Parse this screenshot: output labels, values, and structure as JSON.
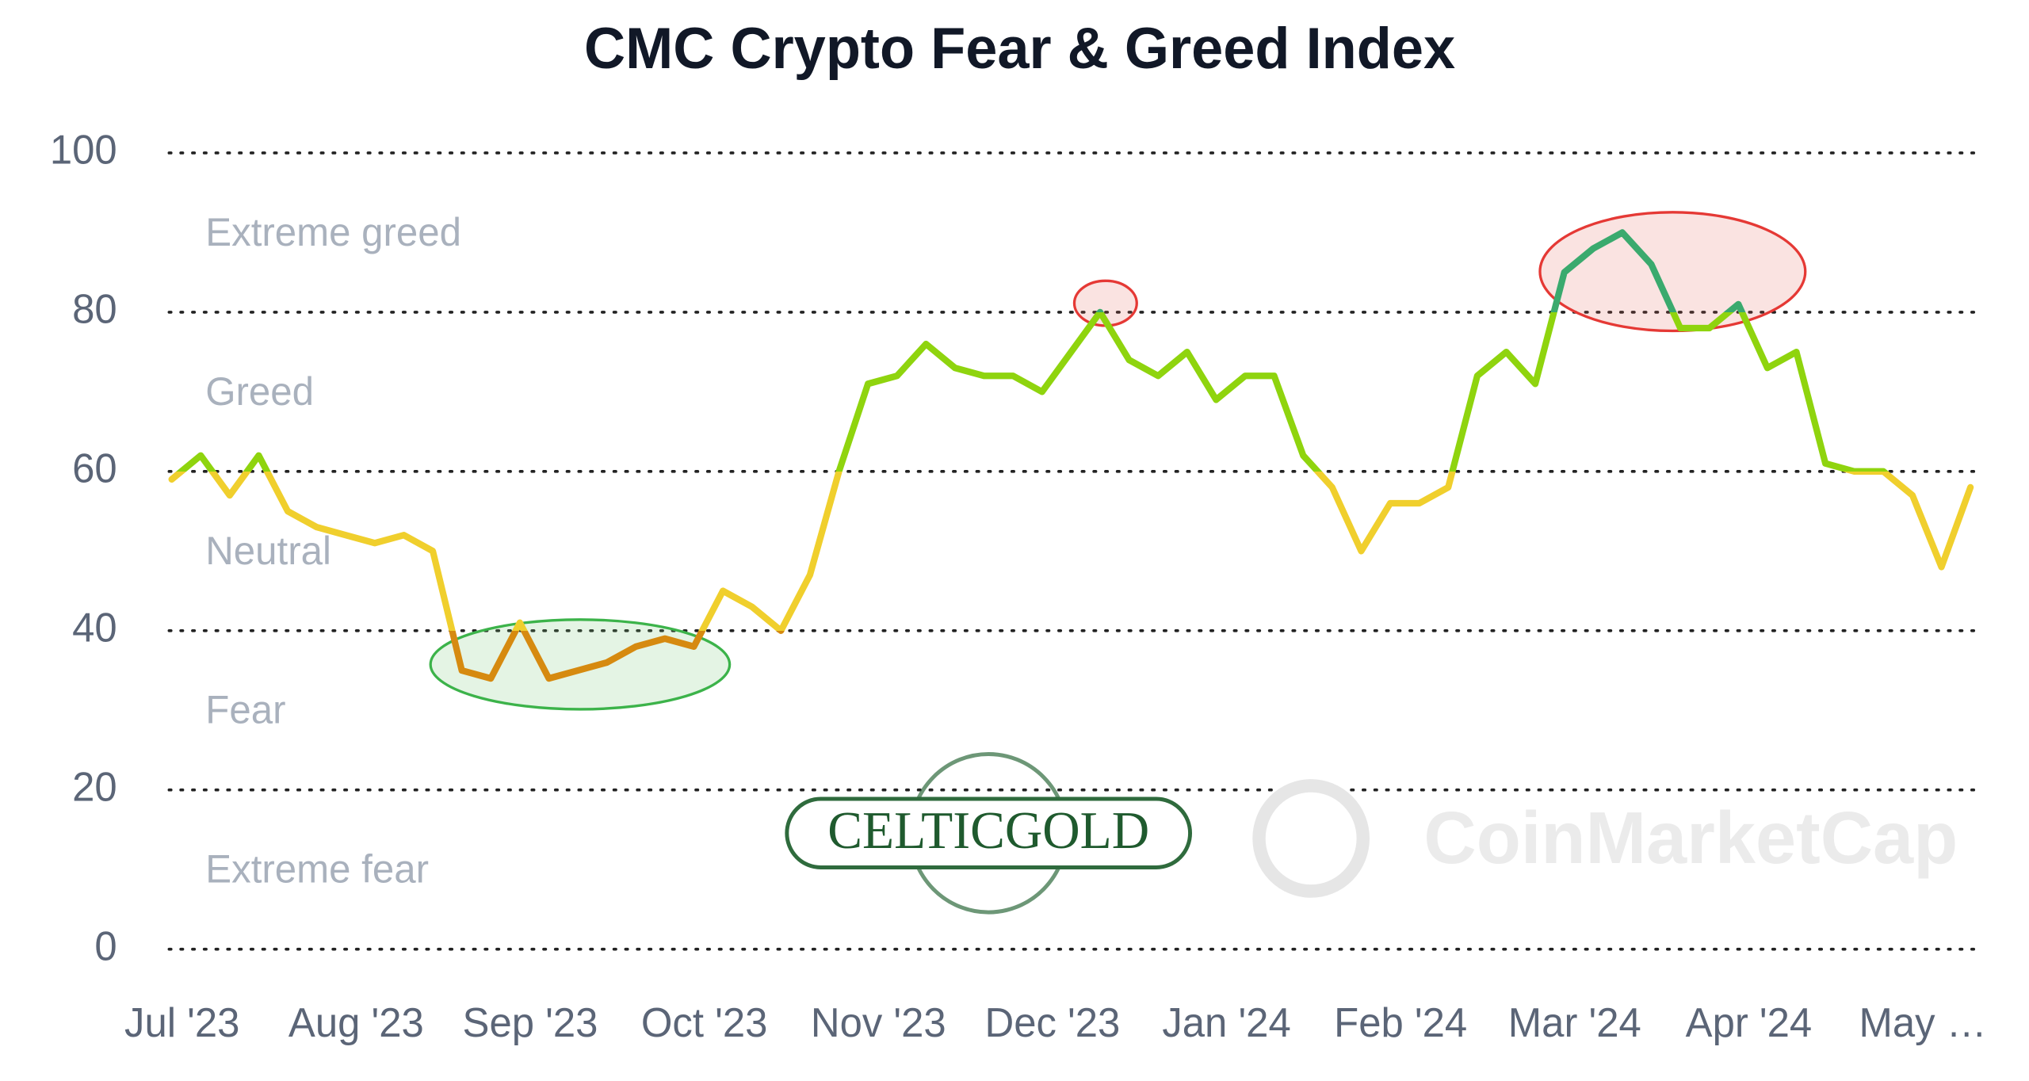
{
  "chart_data": {
    "type": "line",
    "title": "CMC Crypto Fear & Greed Index",
    "categories": [
      "Jul '23",
      null,
      null,
      null,
      null,
      null,
      "Aug '23",
      null,
      null,
      null,
      null,
      null,
      "Sep '23",
      null,
      null,
      null,
      null,
      null,
      "Oct '23",
      null,
      null,
      null,
      null,
      null,
      "Nov '23",
      null,
      null,
      null,
      null,
      null,
      "Dec '23",
      null,
      null,
      null,
      null,
      null,
      "Jan '24",
      null,
      null,
      null,
      null,
      null,
      "Feb '24",
      null,
      null,
      null,
      null,
      null,
      "Mar '24",
      null,
      null,
      null,
      null,
      null,
      "Apr '24",
      null,
      null,
      null,
      null,
      null,
      "May …",
      null,
      null
    ],
    "values": [
      59,
      62,
      57,
      62,
      55,
      53,
      52,
      51,
      52,
      50,
      35,
      34,
      41,
      34,
      35,
      36,
      38,
      39,
      38,
      45,
      43,
      40,
      47,
      60,
      71,
      72,
      76,
      73,
      72,
      72,
      70,
      75,
      80,
      74,
      72,
      75,
      69,
      72,
      72,
      62,
      58,
      50,
      56,
      56,
      58,
      72,
      75,
      71,
      85,
      88,
      90,
      86,
      78,
      78,
      81,
      73,
      75,
      61,
      60,
      60,
      57,
      48,
      58
    ],
    "ylim": [
      0,
      100
    ],
    "yticks": [
      0,
      20,
      40,
      60,
      80,
      100
    ],
    "grid": true,
    "zones": [
      {
        "label": "Extreme greed",
        "from": 80,
        "to": 100,
        "color": "#3aaa6e"
      },
      {
        "label": "Greed",
        "from": 60,
        "to": 80,
        "color": "#8fd40e"
      },
      {
        "label": "Neutral",
        "from": 40,
        "to": 60,
        "color": "#f0cf2d"
      },
      {
        "label": "Fear",
        "from": 20,
        "to": 40,
        "color": "#d68a10"
      },
      {
        "label": "Extreme fear",
        "from": 0,
        "to": 20,
        "color": "#e0522b"
      }
    ],
    "watermarks": [
      "CELTICGOLD",
      "CoinMarketCap"
    ]
  }
}
